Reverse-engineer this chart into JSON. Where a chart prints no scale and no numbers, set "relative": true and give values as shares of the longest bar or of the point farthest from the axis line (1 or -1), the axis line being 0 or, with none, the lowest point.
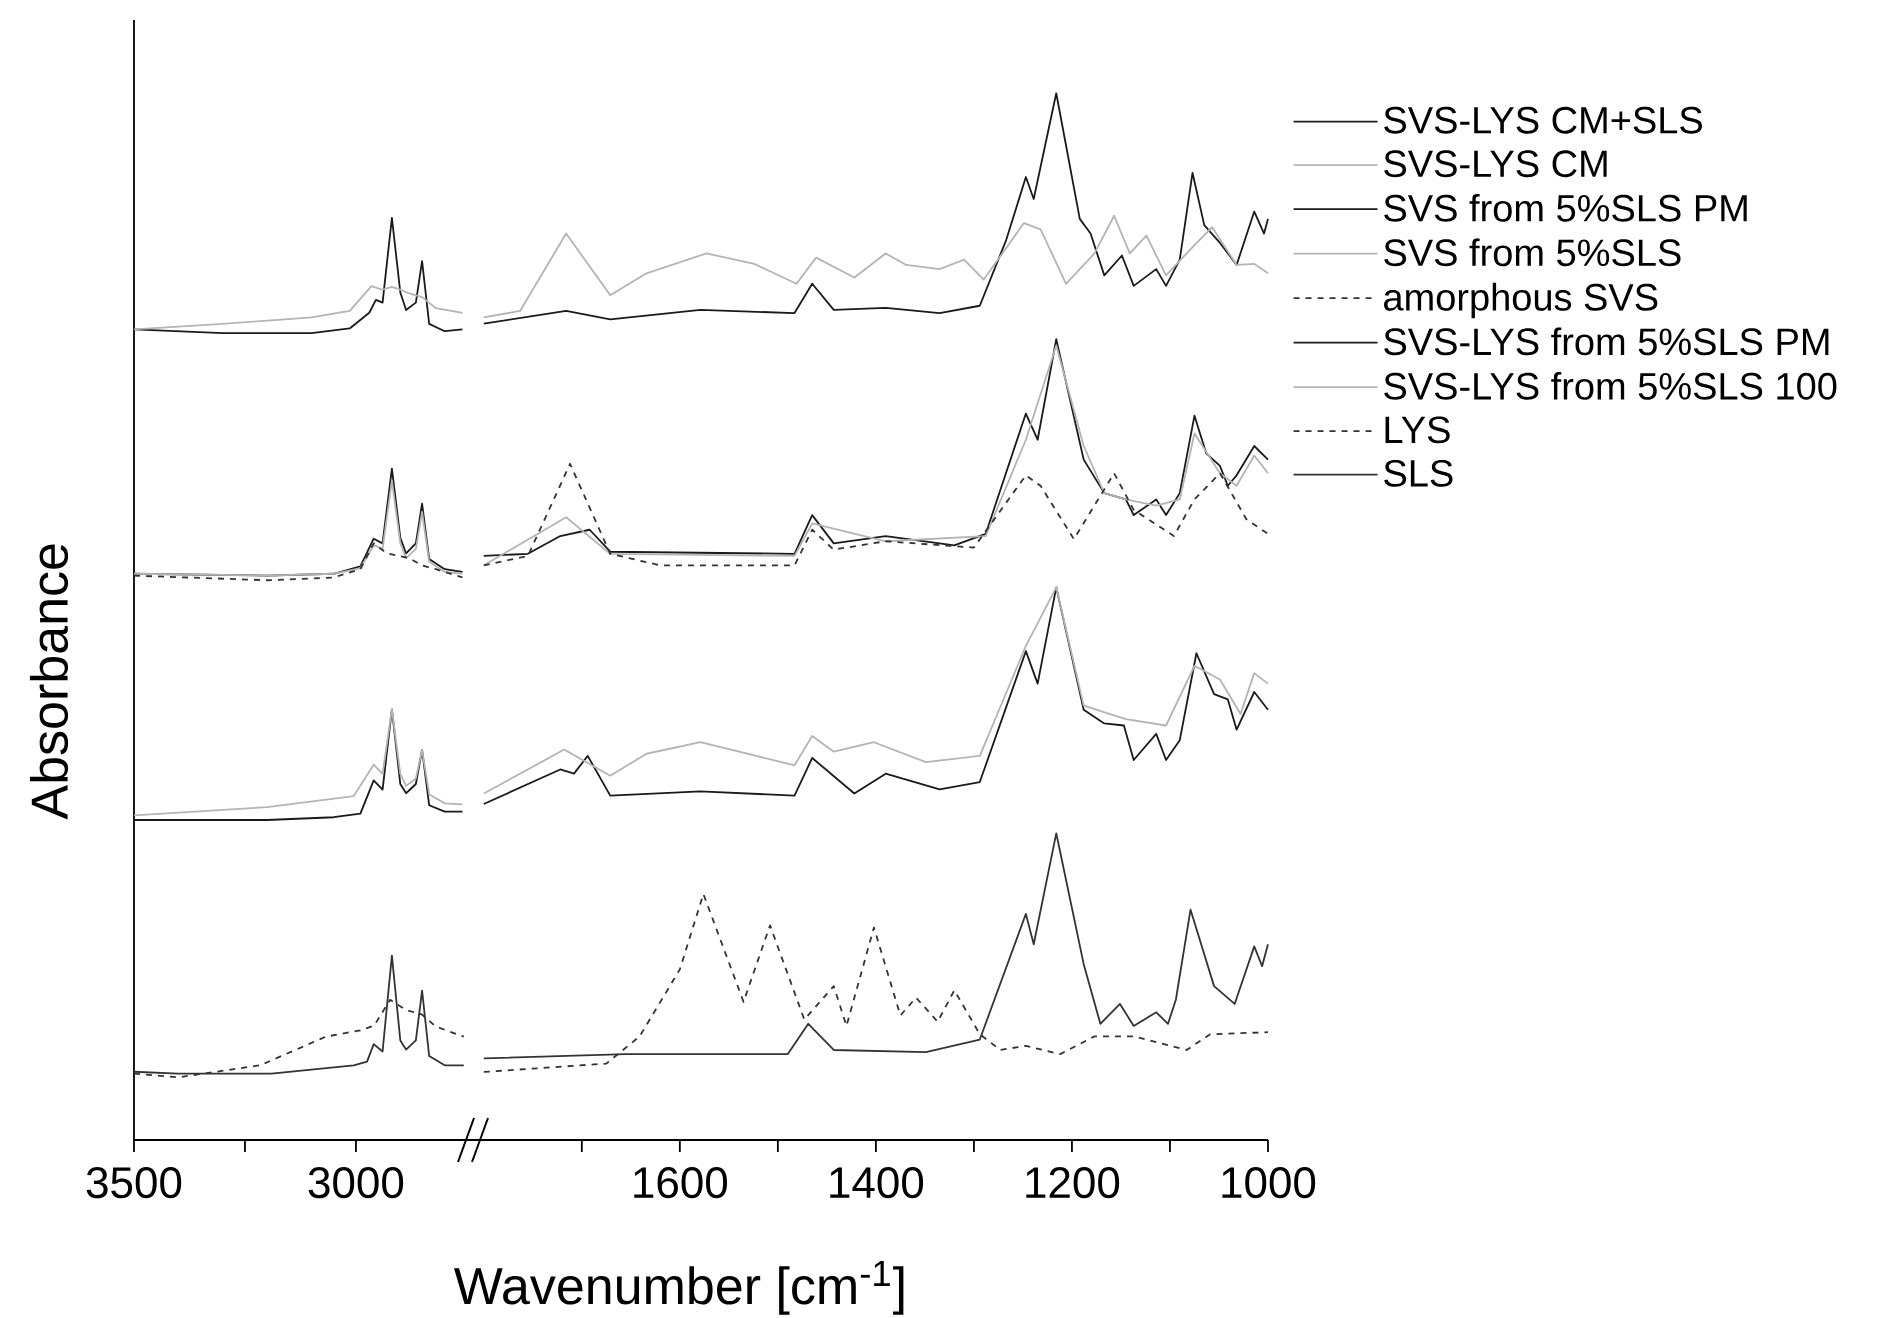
{
  "chart_data": [
    {
      "type": "line",
      "relative": true,
      "ylabel": "Absorbance",
      "xlim": [
        3500,
        2734
      ],
      "xticks": [
        3500,
        {
          "value": 3250,
          "label": null
        },
        3000
      ],
      "tick_labels": "x",
      "series": [
        {
          "color": "#1a1a1a",
          "x": [
            3500,
            3300,
            3100,
            3014,
            2970,
            2955,
            2940,
            2919,
            2900,
            2887,
            2865,
            2851,
            2835,
            2800,
            2760
          ],
          "values": [
            0.879,
            0.875,
            0.875,
            0.88,
            0.897,
            0.911,
            0.908,
            1.0,
            0.919,
            0.9,
            0.908,
            0.953,
            0.885,
            0.877,
            0.879
          ]
        },
        {
          "color": "#b4b4b4",
          "x": [
            3500,
            3300,
            3100,
            3014,
            2965,
            2940,
            2919,
            2900,
            2880,
            2851,
            2820,
            2760
          ],
          "values": [
            0.879,
            0.885,
            0.892,
            0.899,
            0.926,
            0.922,
            0.925,
            0.922,
            0.918,
            0.914,
            0.902,
            0.897
          ]
        },
        {
          "color": "#1a1a1a",
          "x": [
            3500,
            3200,
            3050,
            2990,
            2960,
            2940,
            2919,
            2900,
            2887,
            2865,
            2851,
            2835,
            2800,
            2760
          ],
          "values": [
            0.614,
            0.612,
            0.614,
            0.622,
            0.652,
            0.647,
            0.728,
            0.653,
            0.636,
            0.647,
            0.69,
            0.63,
            0.619,
            0.616
          ]
        },
        {
          "color": "#b4b4b4",
          "x": [
            3500,
            3200,
            3050,
            2990,
            2960,
            2940,
            2919,
            2900,
            2887,
            2865,
            2851,
            2835,
            2800,
            2760
          ],
          "values": [
            0.614,
            0.612,
            0.614,
            0.62,
            0.645,
            0.641,
            0.715,
            0.647,
            0.631,
            0.641,
            0.681,
            0.627,
            0.616,
            0.614
          ]
        },
        {
          "color": "#333333",
          "line_style": "dashed",
          "x": [
            3500,
            3200,
            3050,
            2990,
            2960,
            2930,
            2900,
            2880,
            2851,
            2820,
            2760
          ],
          "values": [
            0.612,
            0.607,
            0.61,
            0.619,
            0.647,
            0.636,
            0.633,
            0.631,
            0.623,
            0.619,
            0.61
          ]
        },
        {
          "color": "#1a1a1a",
          "x": [
            3500,
            3200,
            3050,
            2990,
            2960,
            2940,
            2919,
            2900,
            2887,
            2865,
            2851,
            2835,
            2800,
            2760
          ],
          "values": [
            0.347,
            0.347,
            0.35,
            0.354,
            0.39,
            0.38,
            0.467,
            0.386,
            0.376,
            0.386,
            0.423,
            0.363,
            0.356,
            0.356
          ]
        },
        {
          "color": "#b4b4b4",
          "x": [
            3500,
            3200,
            3005,
            2960,
            2940,
            2919,
            2900,
            2887,
            2865,
            2851,
            2835,
            2800,
            2760
          ],
          "values": [
            0.352,
            0.361,
            0.373,
            0.407,
            0.397,
            0.467,
            0.397,
            0.384,
            0.392,
            0.423,
            0.375,
            0.365,
            0.364
          ]
        },
        {
          "color": "#333333",
          "line_style": "dashed",
          "x": [
            3500,
            3400,
            3216,
            3068,
            2990,
            2959,
            2923,
            2887,
            2851,
            2820,
            2757
          ],
          "values": [
            0.072,
            0.068,
            0.081,
            0.112,
            0.119,
            0.124,
            0.152,
            0.141,
            0.136,
            0.123,
            0.112
          ]
        },
        {
          "color": "#333333",
          "x": [
            3500,
            3400,
            3190,
            3005,
            2975,
            2960,
            2940,
            2919,
            2900,
            2887,
            2865,
            2851,
            2835,
            2800,
            2757
          ],
          "values": [
            0.074,
            0.072,
            0.072,
            0.081,
            0.085,
            0.104,
            0.096,
            0.2,
            0.108,
            0.098,
            0.108,
            0.162,
            0.091,
            0.081,
            0.081
          ]
        }
      ]
    },
    {
      "type": "line",
      "relative": true,
      "xlabel": "Wavenumber [cm$^{-1}$]",
      "xlim": [
        1810,
        1000
      ],
      "xticks": [
        {
          "value": 1700,
          "label": null
        },
        1600,
        {
          "value": 1500,
          "label": null
        },
        1400,
        {
          "value": 1300,
          "label": null
        },
        1200,
        {
          "value": 1100,
          "label": null
        },
        1000
      ],
      "tick_labels": "x",
      "legend": "right",
      "series": [
        {
          "name": "SVS-LYS CM+SLS",
          "color": "#1a1a1a",
          "x": [
            1800,
            1716,
            1671,
            1579,
            1483,
            1465,
            1443,
            1390,
            1335,
            1294,
            1267,
            1247,
            1239,
            1216,
            1192,
            1181,
            1167,
            1149,
            1137,
            1114,
            1104,
            1090,
            1077,
            1065,
            1049,
            1032,
            1014,
            1004,
            1000
          ],
          "values": [
            0.78,
            0.792,
            0.784,
            0.793,
            0.79,
            0.818,
            0.793,
            0.795,
            0.79,
            0.797,
            0.86,
            0.92,
            0.899,
            1.0,
            0.88,
            0.866,
            0.826,
            0.845,
            0.816,
            0.832,
            0.816,
            0.841,
            0.924,
            0.874,
            0.857,
            0.836,
            0.887,
            0.866,
            0.88
          ]
        },
        {
          "name": "SVS-LYS CM",
          "color": "#b4b4b4",
          "x": [
            1800,
            1763,
            1716,
            1671,
            1634,
            1573,
            1524,
            1481,
            1461,
            1422,
            1390,
            1369,
            1335,
            1310,
            1290,
            1249,
            1232,
            1206,
            1177,
            1157,
            1141,
            1124,
            1104,
            1075,
            1057,
            1032,
            1014,
            1000
          ],
          "values": [
            0.786,
            0.792,
            0.866,
            0.807,
            0.828,
            0.847,
            0.837,
            0.818,
            0.843,
            0.824,
            0.847,
            0.836,
            0.832,
            0.841,
            0.822,
            0.876,
            0.87,
            0.818,
            0.847,
            0.883,
            0.847,
            0.864,
            0.826,
            0.855,
            0.872,
            0.836,
            0.837,
            0.828
          ]
        },
        {
          "name": "SVS from 5%SLS PM",
          "color": "#1a1a1a",
          "x": [
            1800,
            1755,
            1722,
            1692,
            1671,
            1483,
            1465,
            1443,
            1390,
            1320,
            1288,
            1247,
            1235,
            1216,
            1188,
            1167,
            1145,
            1137,
            1114,
            1104,
            1090,
            1075,
            1063,
            1049,
            1041,
            1032,
            1014,
            1000
          ],
          "values": [
            0.558,
            0.56,
            0.577,
            0.583,
            0.562,
            0.56,
            0.597,
            0.57,
            0.577,
            0.568,
            0.579,
            0.694,
            0.669,
            0.765,
            0.65,
            0.618,
            0.612,
            0.597,
            0.612,
            0.597,
            0.618,
            0.692,
            0.656,
            0.644,
            0.625,
            0.635,
            0.663,
            0.65
          ]
        },
        {
          "name": "SVS from 5%SLS",
          "color": "#b4b4b4",
          "x": [
            1800,
            1716,
            1671,
            1483,
            1465,
            1390,
            1288,
            1247,
            1216,
            1188,
            1167,
            1145,
            1114,
            1090,
            1075,
            1049,
            1032,
            1014,
            1000
          ],
          "values": [
            0.549,
            0.595,
            0.56,
            0.558,
            0.589,
            0.572,
            0.577,
            0.669,
            0.759,
            0.663,
            0.618,
            0.612,
            0.606,
            0.612,
            0.675,
            0.637,
            0.625,
            0.654,
            0.637
          ]
        },
        {
          "name": "amorphous SVS",
          "color": "#333333",
          "line_style": "dashed",
          "x": [
            1800,
            1755,
            1712,
            1671,
            1620,
            1483,
            1465,
            1443,
            1390,
            1300,
            1247,
            1232,
            1198,
            1157,
            1137,
            1096,
            1075,
            1049,
            1022,
            1000
          ],
          "values": [
            0.549,
            0.558,
            0.646,
            0.56,
            0.549,
            0.549,
            0.583,
            0.564,
            0.572,
            0.566,
            0.635,
            0.625,
            0.574,
            0.637,
            0.602,
            0.577,
            0.612,
            0.637,
            0.593,
            0.579
          ]
        },
        {
          "name": "SVS-LYS from 5%SLS PM",
          "color": "#1a1a1a",
          "x": [
            1800,
            1722,
            1708,
            1694,
            1671,
            1579,
            1483,
            1465,
            1422,
            1390,
            1335,
            1294,
            1247,
            1235,
            1216,
            1188,
            1167,
            1147,
            1137,
            1114,
            1104,
            1090,
            1073,
            1055,
            1041,
            1032,
            1014,
            1000
          ],
          "values": [
            0.321,
            0.354,
            0.35,
            0.367,
            0.329,
            0.333,
            0.329,
            0.365,
            0.331,
            0.35,
            0.335,
            0.342,
            0.467,
            0.436,
            0.528,
            0.411,
            0.398,
            0.396,
            0.363,
            0.388,
            0.363,
            0.382,
            0.465,
            0.426,
            0.421,
            0.392,
            0.428,
            0.411
          ]
        },
        {
          "name": "SVS-LYS from 5%SLS 100",
          "color": "#b4b4b4",
          "x": [
            1800,
            1718,
            1671,
            1634,
            1579,
            1483,
            1465,
            1443,
            1402,
            1349,
            1294,
            1247,
            1216,
            1188,
            1145,
            1104,
            1075,
            1049,
            1028,
            1014,
            1000
          ],
          "values": [
            0.331,
            0.373,
            0.348,
            0.369,
            0.38,
            0.358,
            0.386,
            0.371,
            0.38,
            0.361,
            0.367,
            0.472,
            0.528,
            0.415,
            0.402,
            0.396,
            0.453,
            0.44,
            0.407,
            0.446,
            0.436
          ]
        },
        {
          "name": "LYS",
          "color": "#333333",
          "line_style": "dashed",
          "x": [
            1800,
            1675,
            1641,
            1600,
            1576,
            1535,
            1508,
            1473,
            1443,
            1430,
            1402,
            1375,
            1359,
            1337,
            1320,
            1294,
            1273,
            1247,
            1212,
            1177,
            1137,
            1083,
            1059,
            1000
          ],
          "values": [
            0.065,
            0.073,
            0.099,
            0.163,
            0.235,
            0.132,
            0.205,
            0.115,
            0.147,
            0.109,
            0.203,
            0.119,
            0.136,
            0.113,
            0.143,
            0.101,
            0.086,
            0.09,
            0.082,
            0.099,
            0.099,
            0.086,
            0.101,
            0.103
          ]
        },
        {
          "name": "SLS",
          "color": "#333333",
          "x": [
            1800,
            1655,
            1490,
            1469,
            1443,
            1349,
            1294,
            1247,
            1239,
            1216,
            1188,
            1171,
            1151,
            1137,
            1114,
            1102,
            1094,
            1079,
            1055,
            1034,
            1014,
            1006,
            1000
          ],
          "values": [
            0.078,
            0.082,
            0.082,
            0.111,
            0.086,
            0.084,
            0.096,
            0.216,
            0.187,
            0.293,
            0.168,
            0.111,
            0.13,
            0.109,
            0.122,
            0.111,
            0.134,
            0.22,
            0.147,
            0.13,
            0.185,
            0.166,
            0.187
          ]
        }
      ]
    }
  ]
}
